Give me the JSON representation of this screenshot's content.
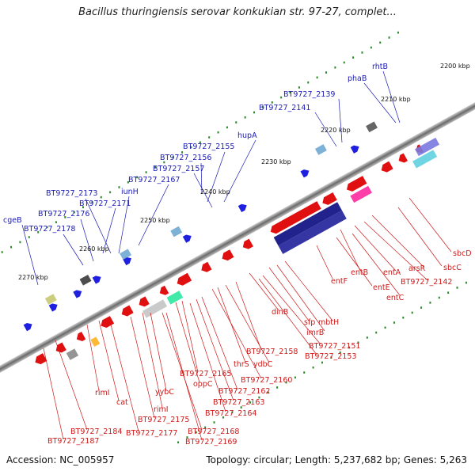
{
  "header": {
    "title": "Bacillus thuringiensis serovar konkukian str. 97-27, complet..."
  },
  "footer": {
    "accession": "Accession: NC_005957",
    "summary": "Topology: circular; Length: 5,237,682 bp; Genes: 5,263"
  },
  "colors": {
    "backbone": "#777777",
    "forward_arrow": "#1f1fe0",
    "reverse_arrow": "#e01010",
    "scale_tick": "#2a8a2a",
    "label_blue": "#1b1bb4",
    "label_red": "#d01818"
  },
  "scale_labels": [
    "2200 kbp",
    "2210 kbp",
    "2220 kbp",
    "2230 kbp",
    "2240 kbp",
    "2250 kbp",
    "2260 kbp",
    "2270 kbp"
  ],
  "top_labels": [
    "rhtB",
    "phaB",
    "BT9727_2139",
    "BT9727_2141",
    "hupA",
    "BT9727_2155",
    "BT9727_2156",
    "BT9727_2157",
    "BT9727_2167",
    "iunH",
    "BT9727_2173",
    "BT9727_2171",
    "cgeB",
    "BT9727_2176",
    "BT9727_2178"
  ],
  "bottom_labels": [
    "sbcD",
    "sbcC",
    "arsR",
    "BT9727_2142",
    "entA",
    "entC",
    "entB",
    "entE",
    "entF",
    "mbtH",
    "imrB",
    "sfp",
    "dinB",
    "BT9727_2151",
    "BT9727_2153",
    "BT9727_2158",
    "ydbC",
    "thrS",
    "BT9727_2160",
    "BT9727_2165",
    "oppC",
    "BT9727_2162",
    "BT9727_2163",
    "BT9727_2164",
    "yybC",
    "rimI",
    "cat",
    "BT9727_2175",
    "BT9727_2177",
    "BT9727_2168",
    "BT9727_2169",
    "BT9727_2184",
    "BT9727_2187"
  ]
}
